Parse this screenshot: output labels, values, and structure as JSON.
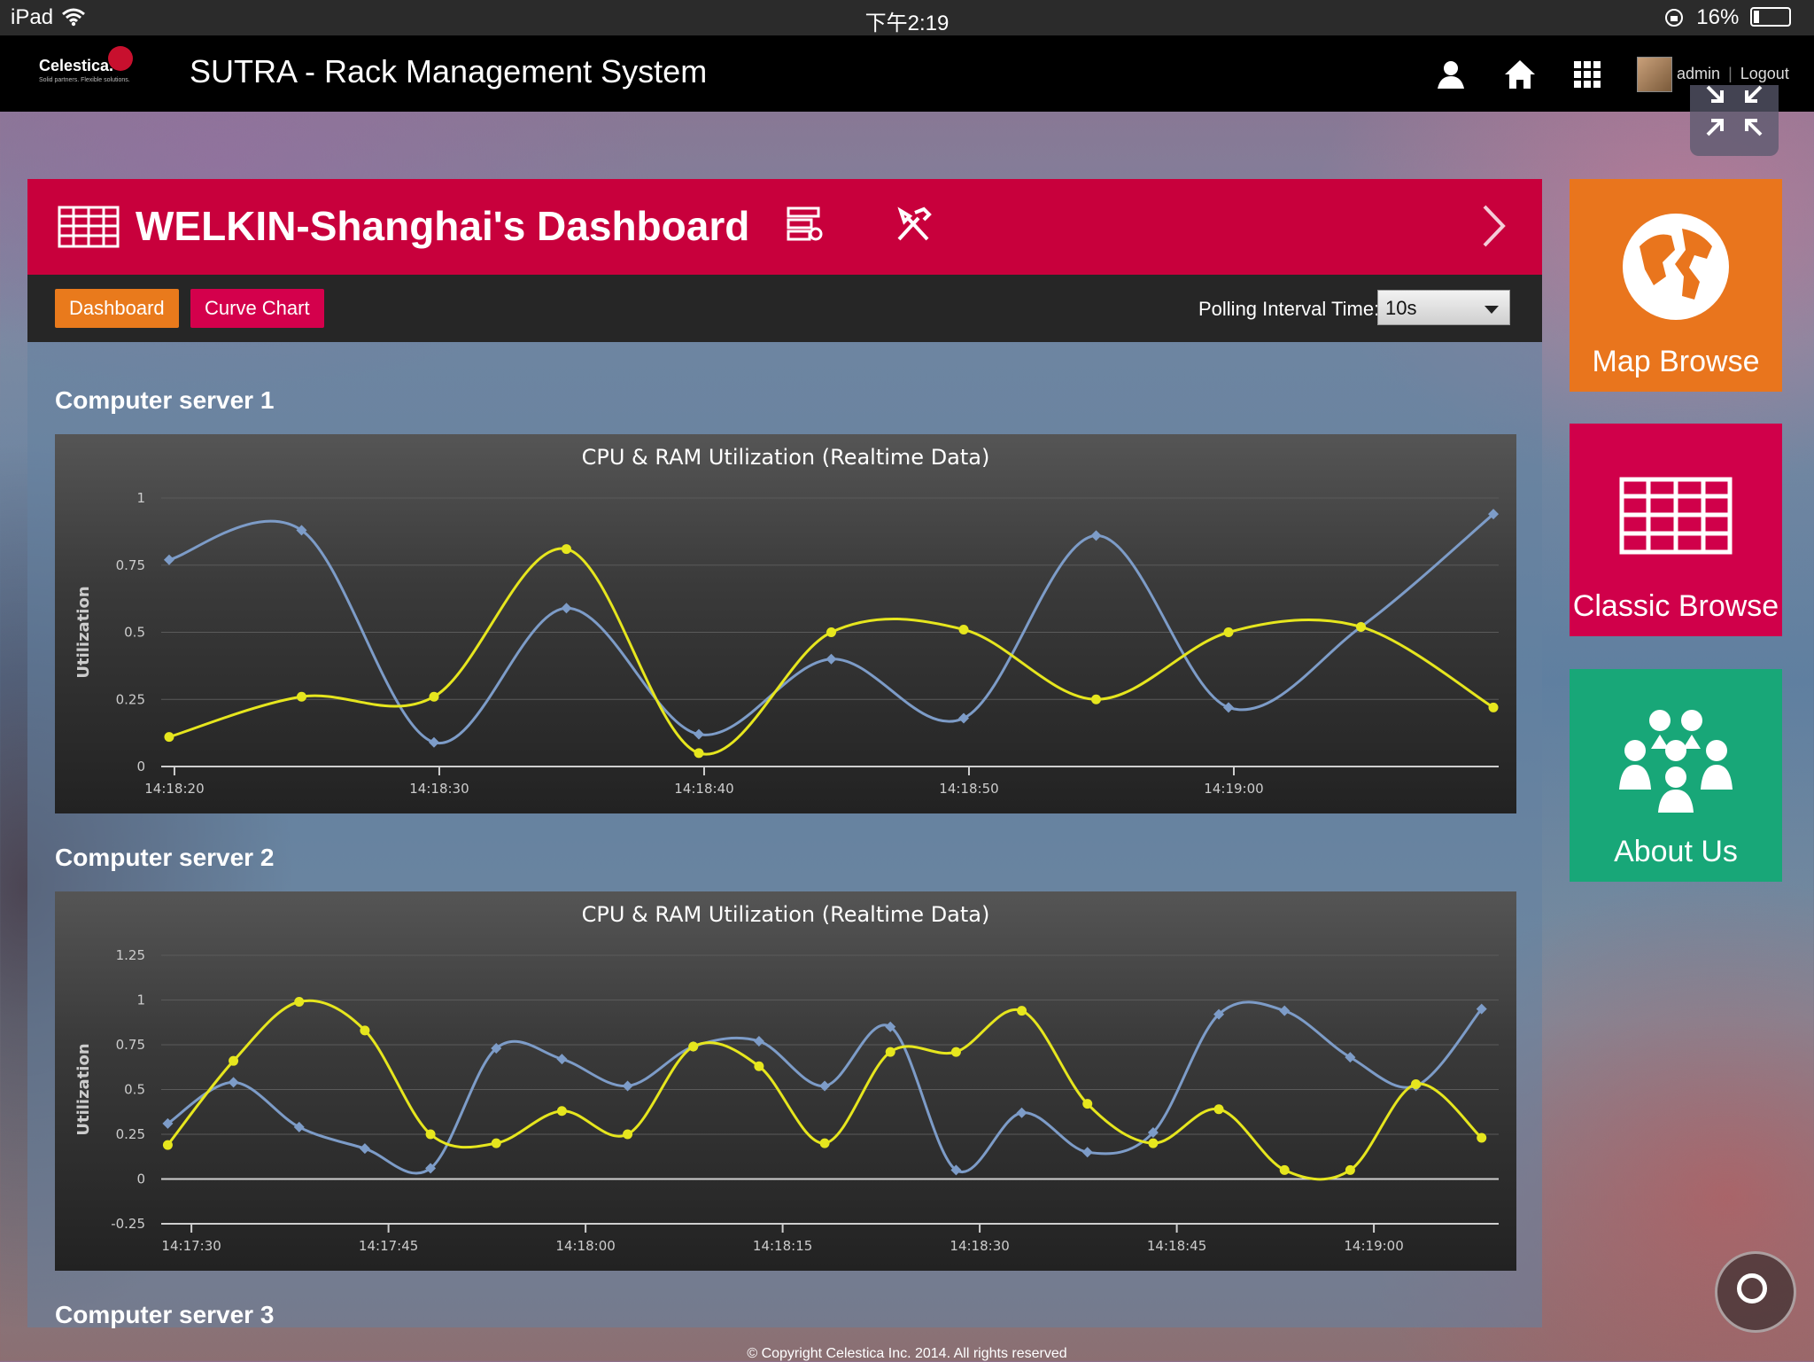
{
  "status_bar": {
    "device": "iPad",
    "time": "下午2:19",
    "battery": "16%"
  },
  "header": {
    "logo_name": "Celestica.",
    "logo_tagline": "Solid partners. Flexible solutions.",
    "app_title": "SUTRA - Rack Management System",
    "user_name": "admin",
    "separator": "|",
    "logout_label": "Logout",
    "icons": [
      "user-icon",
      "home-icon",
      "apps-grid-icon",
      "avatar",
      "resize-icon"
    ]
  },
  "dashboard": {
    "title": "WELKIN-Shanghai's Dashboard",
    "tabs": [
      {
        "label": "Dashboard",
        "active": true
      },
      {
        "label": "Curve Chart",
        "active": false
      }
    ],
    "polling_label": "Polling Interval Time:",
    "polling_value": "10s"
  },
  "sections": [
    {
      "title": "Computer server 1"
    },
    {
      "title": "Computer server 2"
    },
    {
      "title": "Computer server 3"
    }
  ],
  "tiles": [
    {
      "label": "Map Browse",
      "color": "#e9751d"
    },
    {
      "label": "Classic Browse",
      "color": "#d0004a"
    },
    {
      "label": "About Us",
      "color": "#18a778"
    }
  ],
  "footer": "© Copyright Celestica Inc. 2014. All rights reserved",
  "colors": {
    "accent": "#c8003c",
    "series_blue": "#7d9cc8",
    "series_yellow": "#e6e61e"
  },
  "chart_data": [
    {
      "type": "line",
      "title": "CPU & RAM Utilization (Realtime Data)",
      "xlabel": "",
      "ylabel": "Utilization",
      "ylim": [
        0,
        1
      ],
      "yticks": [
        "0",
        "0.25",
        "0.5",
        "0.75",
        "1"
      ],
      "xticks": [
        "14:18:20",
        "14:18:30",
        "14:18:40",
        "14:18:50",
        "14:19:00"
      ],
      "x_range_seconds": [
        -0.5,
        50
      ],
      "x_seconds": [
        -0.2,
        4.8,
        9.8,
        14.8,
        19.8,
        24.8,
        29.8,
        34.8,
        39.8,
        44.8,
        49.8
      ],
      "series": [
        {
          "color": "#7d9cc8",
          "values": [
            0.77,
            0.88,
            0.09,
            0.59,
            0.12,
            0.4,
            0.18,
            0.86,
            0.22,
            0.52,
            0.94
          ]
        },
        {
          "color": "#e6e61e",
          "values": [
            0.11,
            0.26,
            0.26,
            0.81,
            0.05,
            0.5,
            0.51,
            0.25,
            0.5,
            0.52,
            0.22
          ]
        }
      ]
    },
    {
      "type": "line",
      "title": "CPU & RAM Utilization (Realtime Data)",
      "xlabel": "",
      "ylabel": "Utilization",
      "ylim": [
        -0.25,
        1.25
      ],
      "yticks": [
        "-0.25",
        "0",
        "0.25",
        "0.5",
        "0.75",
        "1",
        "1.25"
      ],
      "xticks": [
        "14:17:30",
        "14:17:45",
        "14:18:00",
        "14:18:15",
        "14:18:30",
        "14:18:45",
        "14:19:00"
      ],
      "x_range_seconds": [
        -2.3,
        99.5
      ],
      "x_seconds": [
        -1.8,
        3.2,
        8.2,
        13.2,
        18.2,
        23.2,
        28.2,
        33.2,
        38.2,
        43.2,
        48.2,
        53.2,
        58.2,
        63.2,
        68.2,
        73.2,
        78.2,
        83.2,
        88.2,
        93.2,
        98.2
      ],
      "series": [
        {
          "color": "#7d9cc8",
          "values": [
            0.31,
            0.54,
            0.29,
            0.17,
            0.06,
            0.73,
            0.67,
            0.52,
            0.74,
            0.77,
            0.52,
            0.85,
            0.05,
            0.37,
            0.15,
            0.26,
            0.92,
            0.94,
            0.68,
            0.52,
            0.95
          ]
        },
        {
          "color": "#e6e61e",
          "values": [
            0.19,
            0.66,
            0.99,
            0.83,
            0.25,
            0.2,
            0.38,
            0.25,
            0.74,
            0.63,
            0.2,
            0.71,
            0.71,
            0.94,
            0.42,
            0.2,
            0.39,
            0.05,
            0.05,
            0.53,
            0.23
          ]
        }
      ]
    }
  ]
}
